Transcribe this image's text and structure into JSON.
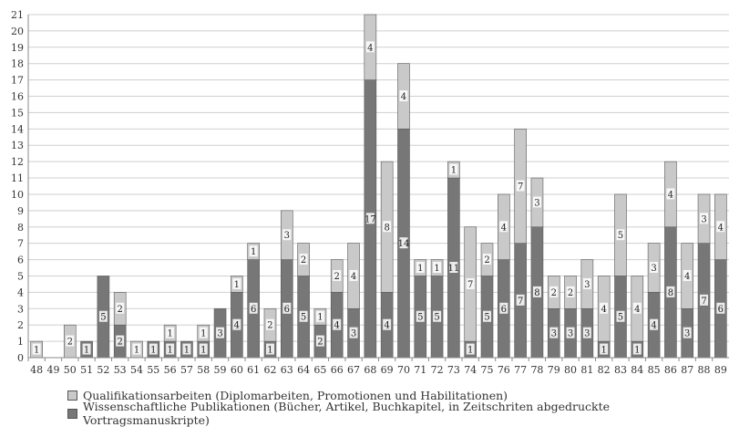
{
  "chart_data": {
    "type": "bar",
    "stacked": true,
    "categories": [
      "48",
      "49",
      "50",
      "51",
      "52",
      "53",
      "54",
      "55",
      "56",
      "57",
      "58",
      "59",
      "60",
      "61",
      "62",
      "63",
      "64",
      "65",
      "66",
      "67",
      "68",
      "69",
      "70",
      "71",
      "72",
      "73",
      "74",
      "75",
      "76",
      "77",
      "78",
      "79",
      "80",
      "81",
      "82",
      "83",
      "84",
      "85",
      "86",
      "87",
      "88",
      "89"
    ],
    "series": [
      {
        "name": "Wissenschaftliche Publikationen (Bücher, Artikel, Buchkapitel, in Zeitschriten abgedruckte Vortragsmanuskripte)",
        "color": "#777777",
        "values": [
          0,
          0,
          0,
          1,
          5,
          2,
          0,
          1,
          1,
          1,
          1,
          3,
          4,
          6,
          1,
          6,
          5,
          2,
          4,
          3,
          17,
          4,
          14,
          5,
          5,
          11,
          1,
          5,
          6,
          7,
          8,
          3,
          3,
          3,
          1,
          5,
          1,
          4,
          8,
          3,
          7,
          6
        ],
        "labels": [
          "",
          "",
          "",
          "1",
          "5",
          "2",
          "",
          "1",
          "1",
          "1",
          "1",
          "3",
          "4",
          "6",
          "1",
          "6",
          "5",
          "2",
          "4",
          "3",
          "17",
          "4",
          "14",
          "5",
          "5",
          "11",
          "1",
          "5",
          "6",
          "7",
          "8",
          "3",
          "3",
          "3",
          "1",
          "5",
          "1",
          "4",
          "8",
          "3",
          "7",
          "6"
        ]
      },
      {
        "name": "Qualifikationsarbeiten (Diplomarbeiten, Promotionen und Habilitationen)",
        "color": "#c9c9c9",
        "values": [
          1,
          0,
          2,
          0,
          0,
          2,
          1,
          0,
          1,
          0,
          1,
          0,
          1,
          1,
          2,
          3,
          2,
          1,
          2,
          4,
          4,
          8,
          4,
          1,
          1,
          1,
          7,
          2,
          4,
          7,
          3,
          2,
          2,
          3,
          4,
          5,
          4,
          3,
          4,
          4,
          3,
          4
        ],
        "labels": [
          "1",
          "",
          "2",
          "",
          "",
          "2",
          "1",
          "",
          "1",
          "",
          "1",
          "",
          "1",
          "1",
          "2",
          "3",
          "2",
          "1",
          "2",
          "4",
          "4",
          "8",
          "4",
          "1",
          "1",
          "1",
          "7",
          "2",
          "4",
          "7",
          "3",
          "2",
          "2",
          "3",
          "4",
          "5",
          "4",
          "3",
          "4",
          "4",
          "3",
          "4"
        ]
      }
    ],
    "yticks": [
      "0",
      "1",
      "2",
      "3",
      "4",
      "5",
      "6",
      "7",
      "8",
      "9",
      "10",
      "11",
      "12",
      "13",
      "14",
      "15",
      "16",
      "17",
      "18",
      "19",
      "20",
      "21"
    ],
    "ylim": [
      0,
      21
    ],
    "grid": true,
    "legend_position": "bottom"
  }
}
